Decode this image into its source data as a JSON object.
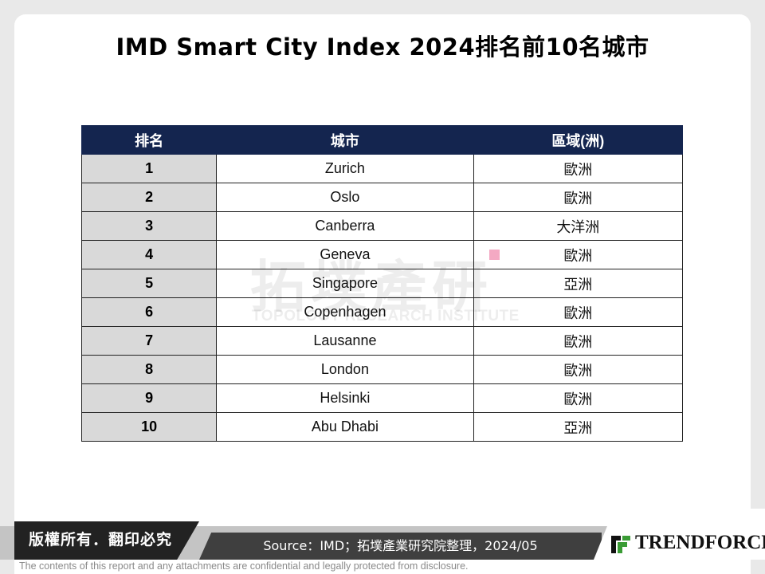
{
  "title": "IMD Smart City Index 2024排名前10名城市",
  "table": {
    "headers": [
      "排名",
      "城市",
      "區域(洲)"
    ],
    "rows": [
      {
        "rank": "1",
        "city": "Zurich",
        "region": "歐洲"
      },
      {
        "rank": "2",
        "city": "Oslo",
        "region": "歐洲"
      },
      {
        "rank": "3",
        "city": "Canberra",
        "region": "大洋洲"
      },
      {
        "rank": "4",
        "city": "Geneva",
        "region": "歐洲"
      },
      {
        "rank": "5",
        "city": "Singapore",
        "region": "亞洲"
      },
      {
        "rank": "6",
        "city": "Copenhagen",
        "region": "歐洲"
      },
      {
        "rank": "7",
        "city": "Lausanne",
        "region": "歐洲"
      },
      {
        "rank": "8",
        "city": "London",
        "region": "歐洲"
      },
      {
        "rank": "9",
        "city": "Helsinki",
        "region": "歐洲"
      },
      {
        "rank": "10",
        "city": "Abu Dhabi",
        "region": "亞洲"
      }
    ]
  },
  "watermark": {
    "chinese": "拓墣產研",
    "english": "TOPOLOGY RESEARCH INSTITUTE"
  },
  "footer": {
    "copyright": "版權所有．翻印必究",
    "source": "Source：IMD；拓墣產業研究院整理，2024/05",
    "logo_text": "TRENDFORCE",
    "disclaimer": "The contents of this report and any attachments are confidential and legally protected from disclosure."
  },
  "colors": {
    "header_bg": "#14254f",
    "rank_bg": "#d9d9d9",
    "logo_green": "#3a9c35"
  }
}
